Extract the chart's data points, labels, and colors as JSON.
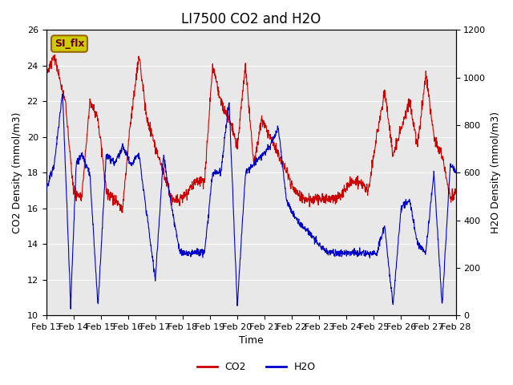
{
  "title": "LI7500 CO2 and H2O",
  "xlabel": "Time",
  "ylabel_left": "CO2 Density (mmol/m3)",
  "ylabel_right": "H2O Density (mmol/m3)",
  "ylim_left": [
    10,
    26
  ],
  "ylim_right": [
    0,
    1200
  ],
  "yticks_left": [
    10,
    12,
    14,
    16,
    18,
    20,
    22,
    24,
    26
  ],
  "yticks_right": [
    0,
    200,
    400,
    600,
    800,
    1000,
    1200
  ],
  "xtick_labels": [
    "Feb 13",
    "Feb 14",
    "Feb 15",
    "Feb 16",
    "Feb 17",
    "Feb 18",
    "Feb 19",
    "Feb 20",
    "Feb 21",
    "Feb 22",
    "Feb 23",
    "Feb 24",
    "Feb 25",
    "Feb 26",
    "Feb 27",
    "Feb 28"
  ],
  "co2_color": "#cc0000",
  "h2o_color": "#0000cc",
  "background_color": "#e8e8e8",
  "annotation_text": "SI_flx",
  "annotation_bg": "#cccc00",
  "annotation_border": "#996600",
  "legend_co2": "CO2",
  "legend_h2o": "H2O",
  "title_fontsize": 12,
  "axis_label_fontsize": 9,
  "tick_fontsize": 8
}
